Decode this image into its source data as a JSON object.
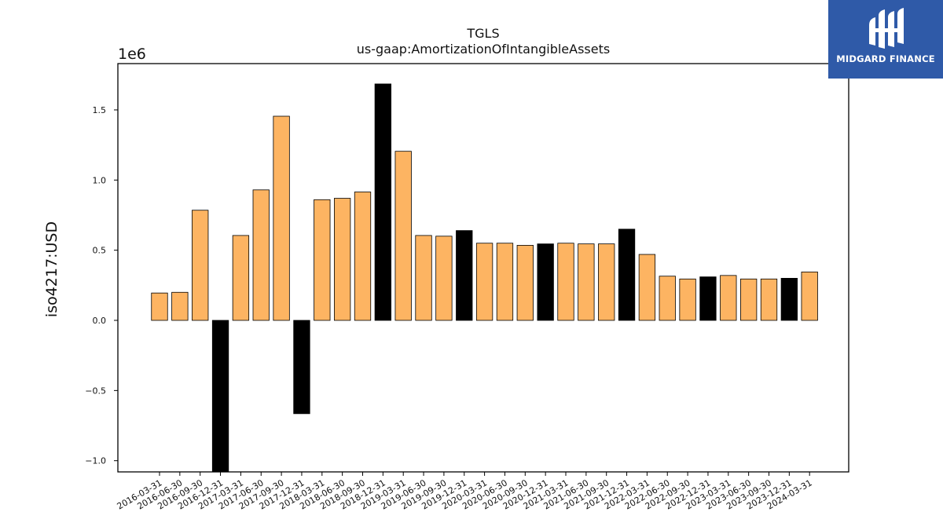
{
  "chart_data": {
    "type": "bar",
    "title": "TGLS",
    "subtitle": "us-gaap:AmortizationOfIntangibleAssets",
    "ylabel": "iso4217:USD",
    "xlabel": "",
    "offset_label": "1e6",
    "ylim": [
      -1.08,
      1.83
    ],
    "yticks": [
      -1.0,
      -0.5,
      0.0,
      0.5,
      1.0,
      1.5
    ],
    "ytick_labels": [
      "−1.0",
      "−0.5",
      "0.0",
      "0.5",
      "1.0",
      "1.5"
    ],
    "colors": {
      "primary": "#fdb462",
      "highlight": "#000000",
      "edge": "#000000"
    },
    "categories": [
      "2016-03-31",
      "2016-06-30",
      "2016-09-30",
      "2016-12-31",
      "2017-03-31",
      "2017-06-30",
      "2017-09-30",
      "2017-12-31",
      "2018-03-31",
      "2018-06-30",
      "2018-09-30",
      "2018-12-31",
      "2019-03-31",
      "2019-06-30",
      "2019-09-30",
      "2019-12-31",
      "2020-03-31",
      "2020-06-30",
      "2020-09-30",
      "2020-12-31",
      "2021-03-31",
      "2021-06-30",
      "2021-09-30",
      "2021-12-31",
      "2022-03-31",
      "2022-06-30",
      "2022-09-30",
      "2022-12-31",
      "2023-03-31",
      "2023-06-30",
      "2023-09-30",
      "2023-12-31",
      "2024-03-31"
    ],
    "values": [
      0.195,
      0.2,
      0.785,
      -1.09,
      0.605,
      0.93,
      1.455,
      -0.665,
      0.86,
      0.87,
      0.915,
      1.685,
      1.205,
      0.605,
      0.6,
      0.64,
      0.55,
      0.55,
      0.535,
      0.545,
      0.55,
      0.545,
      0.545,
      0.65,
      0.47,
      0.315,
      0.295,
      0.31,
      0.32,
      0.295,
      0.295,
      0.3,
      0.345
    ],
    "highlight": [
      false,
      false,
      false,
      true,
      false,
      false,
      false,
      true,
      false,
      false,
      false,
      true,
      false,
      false,
      false,
      true,
      false,
      false,
      false,
      true,
      false,
      false,
      false,
      true,
      false,
      false,
      false,
      true,
      false,
      false,
      false,
      true,
      false
    ]
  },
  "logo": {
    "text": "MIDGARD FINANCE",
    "name": "midgard-finance-logo"
  }
}
